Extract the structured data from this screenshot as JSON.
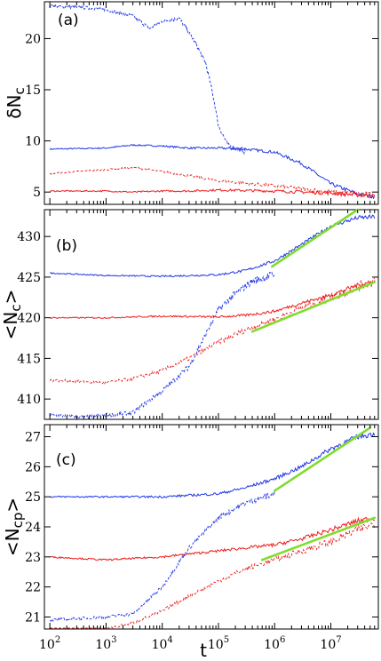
{
  "chart_data": [
    {
      "type": "line",
      "panel_label": "(a)",
      "ylabel": "δN",
      "ylabel_sub": "c",
      "xlabel": "",
      "xscale": "log",
      "xlim": [
        80,
        70000000
      ],
      "ylim": [
        3.8,
        23.6
      ],
      "yticks": [
        5,
        10,
        15,
        20
      ],
      "series": [
        {
          "color": "#1f35e6",
          "dash": false,
          "noise": 0.12,
          "x": [
            100,
            1000,
            3000,
            10000,
            30000,
            100000,
            300000,
            1000000,
            3000000,
            10000000,
            30000000,
            60000000
          ],
          "y": [
            9.2,
            9.3,
            9.6,
            9.5,
            9.3,
            9.3,
            9.2,
            8.9,
            7.8,
            5.8,
            4.8,
            4.6
          ]
        },
        {
          "color": "#1f35e6",
          "dash": true,
          "noise": 0.3,
          "x": [
            100,
            500,
            1000,
            3000,
            6000,
            10000,
            20000,
            25000,
            40000,
            60000,
            80000,
            100000,
            150000,
            300000
          ],
          "y": [
            23.2,
            23.0,
            22.8,
            22.2,
            21.0,
            21.7,
            22.0,
            21.2,
            19.5,
            17.5,
            14.5,
            11.5,
            9.5,
            9.0
          ]
        },
        {
          "color": "#ee1a1a",
          "dash": false,
          "noise": 0.12,
          "x": [
            100,
            1000,
            3000,
            10000,
            30000,
            100000,
            1000000,
            10000000,
            60000000
          ],
          "y": [
            5.1,
            5.1,
            5.0,
            5.1,
            5.1,
            5.2,
            5.1,
            4.9,
            4.6
          ]
        },
        {
          "color": "#ee1a1a",
          "dash": true,
          "noise": 0.15,
          "x": [
            100,
            1000,
            3000,
            10000,
            30000,
            100000,
            1000000,
            10000000,
            60000000
          ],
          "y": [
            6.8,
            7.2,
            7.4,
            7.0,
            6.6,
            6.1,
            5.6,
            5.0,
            4.7
          ]
        }
      ]
    },
    {
      "type": "line",
      "panel_label": "(b)",
      "ylabel": "<N",
      "ylabel_sub": "c",
      "ylabel_end": ">",
      "xlabel": "",
      "xscale": "log",
      "xlim": [
        80,
        70000000
      ],
      "ylim": [
        407.5,
        433.3
      ],
      "yticks": [
        410,
        415,
        420,
        425,
        430
      ],
      "series": [
        {
          "color": "#1f35e6",
          "dash": false,
          "noise": 0.15,
          "x": [
            100,
            1000,
            10000,
            100000,
            300000,
            1000000,
            3000000,
            10000000,
            30000000,
            60000000
          ],
          "y": [
            425.5,
            425.2,
            425.1,
            425.3,
            425.8,
            427.0,
            429.0,
            431.3,
            432.3,
            432.4
          ]
        },
        {
          "color": "#1f35e6",
          "dash": true,
          "noise": 0.45,
          "x": [
            100,
            500,
            1000,
            3000,
            5000,
            10000,
            30000,
            60000,
            100000,
            200000,
            400000,
            700000,
            1000000
          ],
          "y": [
            408.0,
            407.8,
            408.0,
            408.3,
            409.5,
            411.0,
            414.0,
            418.0,
            421.0,
            423.0,
            424.5,
            425.0,
            425.3
          ]
        },
        {
          "color": "#ee1a1a",
          "dash": false,
          "noise": 0.15,
          "x": [
            100,
            1000,
            10000,
            100000,
            300000,
            1000000,
            3000000,
            10000000,
            30000000,
            60000000
          ],
          "y": [
            420.0,
            420.0,
            420.2,
            420.1,
            420.3,
            420.8,
            421.8,
            422.8,
            424.0,
            424.5
          ]
        },
        {
          "color": "#ee1a1a",
          "dash": true,
          "noise": 0.35,
          "x": [
            100,
            1000,
            3000,
            10000,
            30000,
            100000,
            300000,
            1000000,
            3000000,
            10000000,
            30000000,
            60000000
          ],
          "y": [
            412.3,
            412.0,
            412.5,
            413.5,
            415.0,
            417.0,
            418.5,
            419.8,
            421.2,
            422.5,
            423.8,
            424.6
          ]
        }
      ],
      "fits": [
        {
          "x": [
            900000,
            30000000
          ],
          "y": [
            426.3,
            433.3
          ]
        },
        {
          "x": [
            400000,
            60000000
          ],
          "y": [
            418.3,
            424.4
          ]
        }
      ]
    },
    {
      "type": "line",
      "panel_label": "(c)",
      "ylabel": "<N",
      "ylabel_sub": "cp",
      "ylabel_end": ">",
      "xlabel": "t",
      "xscale": "log",
      "xlim": [
        80,
        70000000
      ],
      "ylim": [
        20.6,
        27.4
      ],
      "yticks": [
        21,
        22,
        23,
        24,
        25,
        26,
        27
      ],
      "xticks": [
        100,
        1000,
        10000,
        100000,
        1000000,
        10000000
      ],
      "series": [
        {
          "color": "#1f35e6",
          "dash": false,
          "noise": 0.05,
          "x": [
            100,
            1000,
            10000,
            100000,
            300000,
            1000000,
            3000000,
            10000000,
            30000000,
            60000000
          ],
          "y": [
            25.0,
            25.0,
            25.0,
            25.1,
            25.3,
            25.6,
            26.0,
            26.6,
            27.0,
            27.1
          ]
        },
        {
          "color": "#1f35e6",
          "dash": true,
          "noise": 0.09,
          "x": [
            100,
            1000,
            3000,
            10000,
            30000,
            100000,
            300000,
            1000000
          ],
          "y": [
            20.9,
            21.0,
            21.1,
            22.0,
            23.3,
            24.3,
            24.8,
            25.1
          ]
        },
        {
          "color": "#ee1a1a",
          "dash": false,
          "noise": 0.05,
          "x": [
            100,
            1000,
            10000,
            100000,
            300000,
            1000000,
            3000000,
            10000000,
            30000000,
            60000000
          ],
          "y": [
            23.0,
            22.9,
            23.0,
            23.2,
            23.3,
            23.4,
            23.6,
            23.9,
            24.2,
            24.3
          ]
        },
        {
          "color": "#ee1a1a",
          "dash": true,
          "noise": 0.08,
          "x": [
            100,
            1000,
            3000,
            10000,
            30000,
            100000,
            300000,
            1000000,
            3000000,
            10000000,
            30000000,
            60000000
          ],
          "y": [
            20.6,
            20.6,
            20.8,
            21.2,
            21.7,
            22.2,
            22.6,
            22.9,
            23.2,
            23.5,
            23.9,
            24.1
          ]
        }
      ],
      "fits": [
        {
          "x": [
            1000000,
            50000000
          ],
          "y": [
            25.2,
            27.3
          ]
        },
        {
          "x": [
            600000,
            60000000
          ],
          "y": [
            22.9,
            24.3
          ]
        }
      ]
    }
  ],
  "colors": {
    "blue": "#1f35e6",
    "red": "#ee1a1a",
    "fit": "#7fdc2c"
  }
}
